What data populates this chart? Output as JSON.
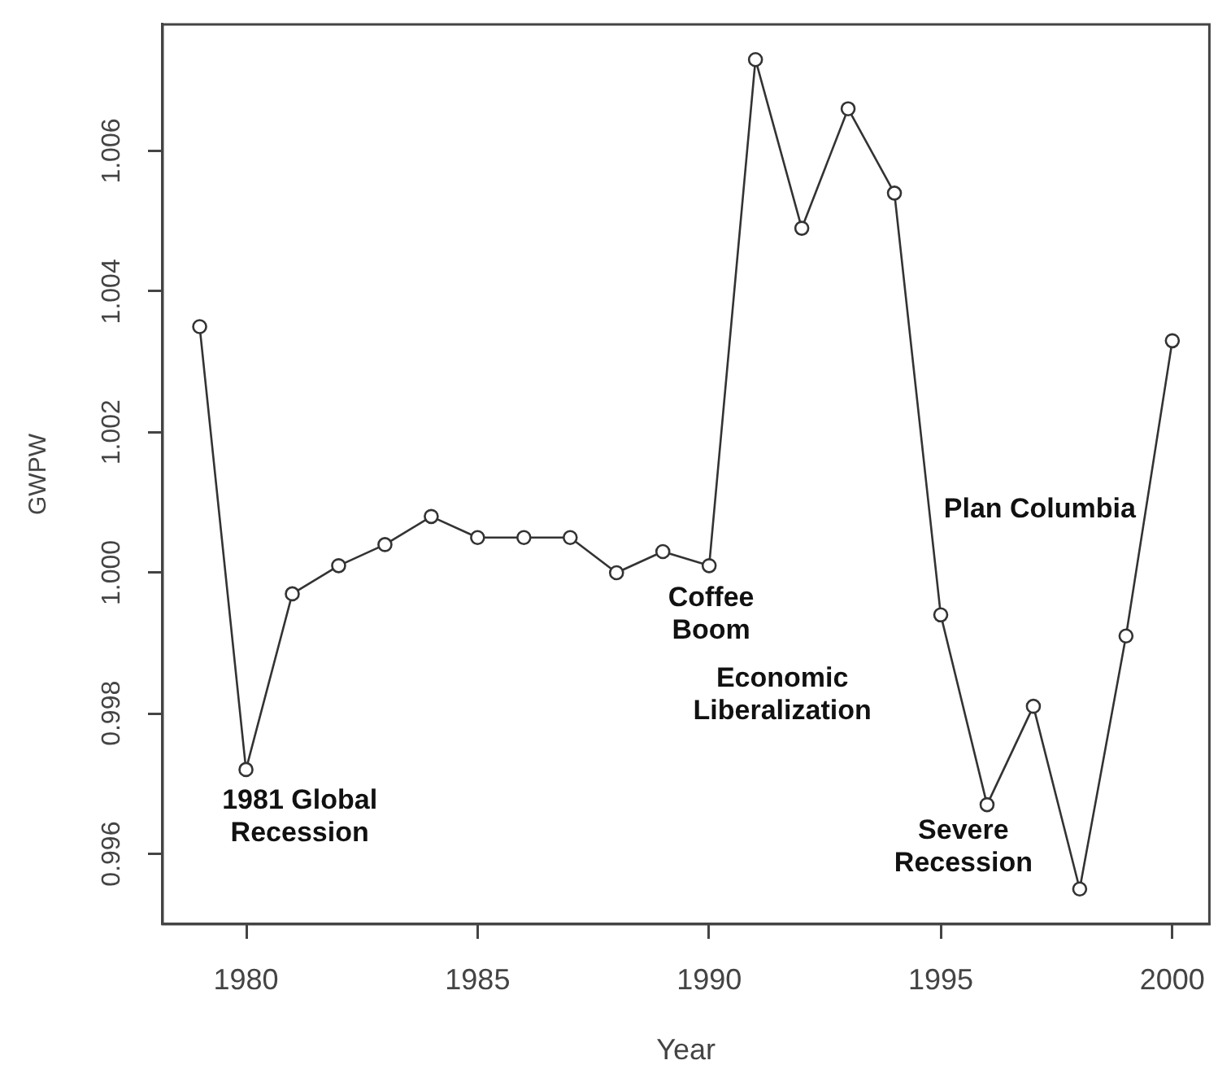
{
  "chart_data": {
    "type": "line",
    "xlabel": "Year",
    "ylabel": "GWPW",
    "x": [
      1979,
      1980,
      1981,
      1982,
      1983,
      1984,
      1985,
      1986,
      1987,
      1988,
      1989,
      1990,
      1991,
      1992,
      1993,
      1994,
      1995,
      1996,
      1997,
      1998,
      1999,
      2000
    ],
    "series": [
      {
        "color": "#333333",
        "values": [
          1.0035,
          0.9972,
          0.9997,
          1.0001,
          1.0004,
          1.0008,
          1.0005,
          1.0005,
          1.0005,
          1.0,
          1.0003,
          1.0001,
          1.0073,
          1.0049,
          1.0066,
          1.0054,
          0.9994,
          0.9967,
          0.9981,
          0.9955,
          0.9991,
          1.0033
        ]
      }
    ],
    "xlim": [
      1978.2,
      2000.8
    ],
    "xticks": [
      1980,
      1985,
      1990,
      1995,
      2000
    ],
    "ylim": [
      0.995,
      1.0078
    ],
    "yticks": [
      0.996,
      0.998,
      {
        "value": 1,
        "label": "1.000"
      },
      1.002,
      1.004,
      1.006
    ],
    "marker": "circle",
    "line_style": "solid",
    "legend": false,
    "annotations": [
      "1981 Global\nRecession",
      "Coffee\nBoom",
      "Economic\nLiberalization",
      "Plan Columbia",
      "Severe\nRecession"
    ]
  }
}
